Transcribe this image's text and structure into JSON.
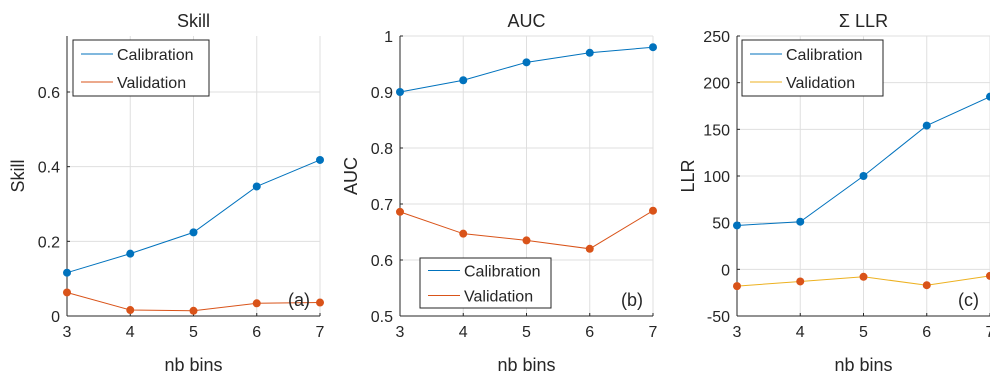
{
  "chart_data": [
    {
      "type": "line",
      "title": "Skill",
      "xlabel": "nb bins",
      "ylabel": "Skill",
      "x": [
        3,
        4,
        5,
        6,
        7
      ],
      "xlim": [
        3,
        7
      ],
      "ylim": [
        0,
        0.75
      ],
      "xticks": [
        "3",
        "4",
        "5",
        "6",
        "7"
      ],
      "yticks": [
        "0",
        "0.2",
        "0.4",
        "0.6"
      ],
      "grid": true,
      "legend_placement": "top-left",
      "panel_label": "(a)",
      "series": [
        {
          "name": "Calibration",
          "color": "#0072BD",
          "values": [
            0.116,
            0.167,
            0.224,
            0.347,
            0.418
          ]
        },
        {
          "name": "Validation",
          "color": "#D95319",
          "values": [
            0.063,
            0.016,
            0.014,
            0.034,
            0.036
          ]
        }
      ]
    },
    {
      "type": "line",
      "title": "AUC",
      "xlabel": "nb bins",
      "ylabel": "AUC",
      "x": [
        3,
        4,
        5,
        6,
        7
      ],
      "xlim": [
        3,
        7
      ],
      "ylim": [
        0.5,
        1
      ],
      "xticks": [
        "3",
        "4",
        "5",
        "6",
        "7"
      ],
      "yticks": [
        "0.5",
        "0.6",
        "0.7",
        "0.8",
        "0.9",
        "1"
      ],
      "grid": true,
      "legend_placement": "bottom-right",
      "panel_label": "(b)",
      "series": [
        {
          "name": "Calibration",
          "color": "#0072BD",
          "values": [
            0.9,
            0.921,
            0.953,
            0.97,
            0.98
          ]
        },
        {
          "name": "Validation",
          "color": "#D95319",
          "values": [
            0.686,
            0.647,
            0.635,
            0.62,
            0.688
          ]
        }
      ]
    },
    {
      "type": "line",
      "title": "Σ LLR",
      "xlabel": "nb bins",
      "ylabel": "LLR",
      "x": [
        3,
        4,
        5,
        6,
        7
      ],
      "xlim": [
        3,
        7
      ],
      "ylim": [
        -50,
        250
      ],
      "xticks": [
        "3",
        "4",
        "5",
        "6",
        "7"
      ],
      "yticks": [
        "-50",
        "0",
        "50",
        "100",
        "150",
        "200",
        "250"
      ],
      "grid": true,
      "legend_placement": "top-left",
      "panel_label": "(c)",
      "series": [
        {
          "name": "Calibration",
          "color": "#0072BD",
          "values": [
            47,
            51,
            100,
            154,
            185
          ]
        },
        {
          "name": "Validation",
          "color": "#EDB120",
          "marker_color": "#D95319",
          "values": [
            -18,
            -13,
            -8,
            -17,
            -7
          ]
        }
      ]
    }
  ]
}
